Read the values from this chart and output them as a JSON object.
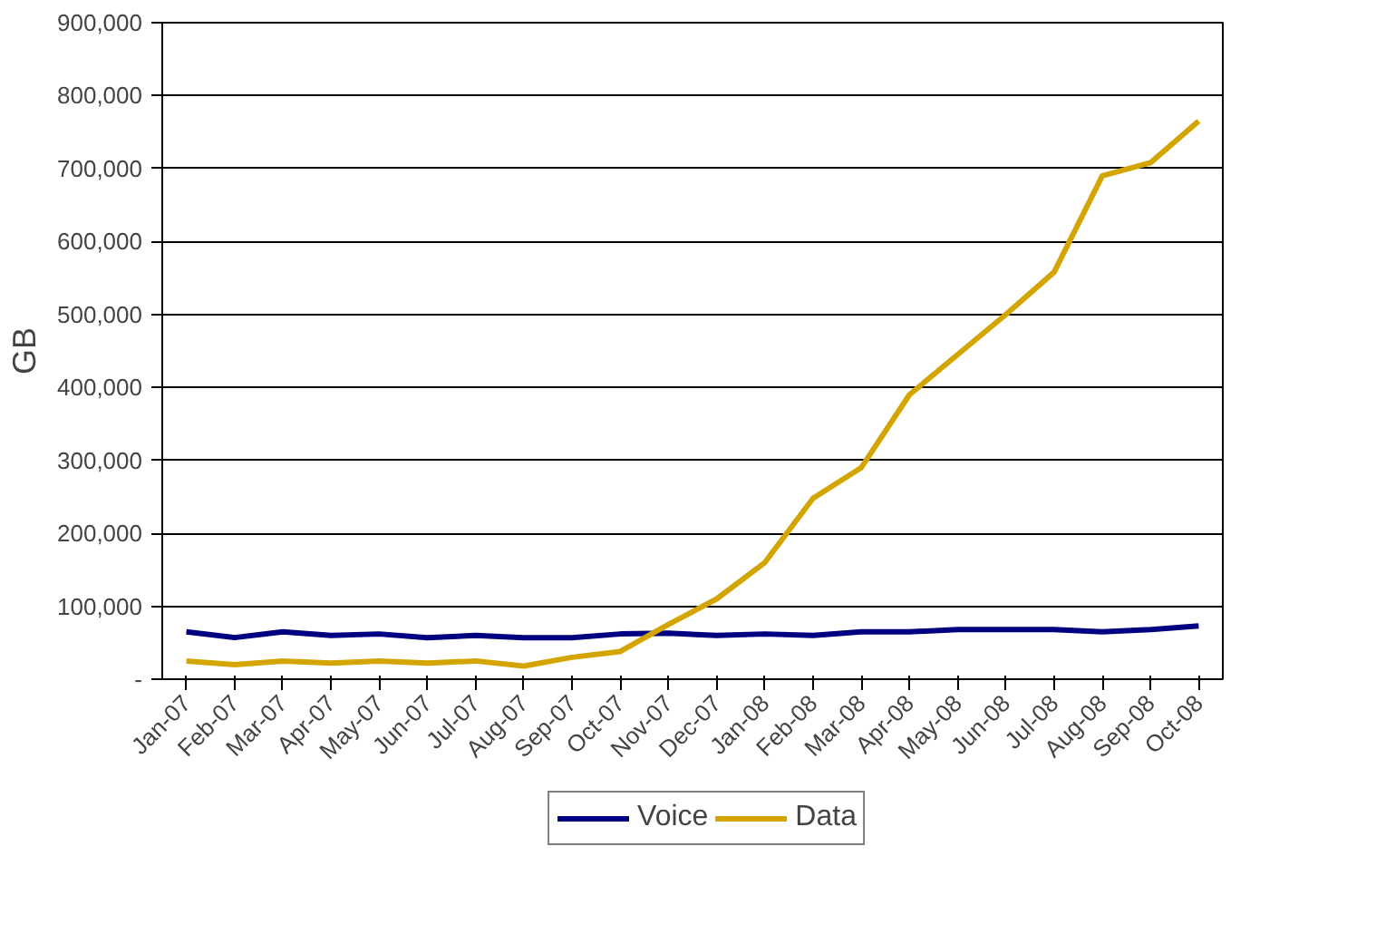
{
  "chart_data": {
    "type": "line",
    "ylabel": "GB",
    "categories": [
      "Jan-07",
      "Feb-07",
      "Mar-07",
      "Apr-07",
      "May-07",
      "Jun-07",
      "Jul-07",
      "Aug-07",
      "Sep-07",
      "Oct-07",
      "Nov-07",
      "Dec-07",
      "Jan-08",
      "Feb-08",
      "Mar-08",
      "Apr-08",
      "May-08",
      "Jun-08",
      "Jul-08",
      "Aug-08",
      "Sep-08",
      "Oct-08"
    ],
    "series": [
      {
        "name": "Voice",
        "color": "#000080",
        "values": [
          65000,
          57000,
          65000,
          60000,
          62000,
          57000,
          60000,
          57000,
          57000,
          62000,
          63000,
          60000,
          62000,
          60000,
          65000,
          65000,
          68000,
          68000,
          68000,
          65000,
          68000,
          73000
        ]
      },
      {
        "name": "Data",
        "color": "#d4a500",
        "values": [
          25000,
          20000,
          25000,
          22000,
          25000,
          22000,
          25000,
          18000,
          30000,
          38000,
          75000,
          110000,
          160000,
          248000,
          290000,
          390000,
          445000,
          500000,
          558000,
          690000,
          708000,
          765000
        ]
      }
    ],
    "ylim": [
      0,
      900000
    ],
    "yticks": [
      {
        "value": 0,
        "label": "-"
      },
      {
        "value": 100000,
        "label": "100,000"
      },
      {
        "value": 200000,
        "label": "200,000"
      },
      {
        "value": 300000,
        "label": "300,000"
      },
      {
        "value": 400000,
        "label": "400,000"
      },
      {
        "value": 500000,
        "label": "500,000"
      },
      {
        "value": 600000,
        "label": "600,000"
      },
      {
        "value": 700000,
        "label": "700,000"
      },
      {
        "value": 800000,
        "label": "800,000"
      },
      {
        "value": 900000,
        "label": "900,000"
      }
    ],
    "grid": "y",
    "legend": "bottom",
    "marker": "none",
    "line_style": "solid"
  }
}
